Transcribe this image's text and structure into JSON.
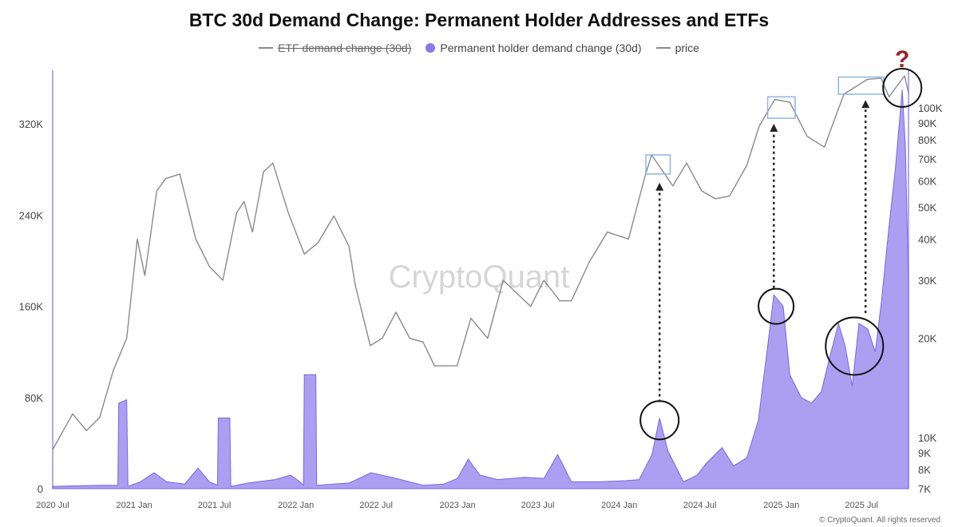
{
  "chart_data": {
    "type": "area",
    "title": "BTC 30d Demand Change: Permanent Holder Addresses and ETFs",
    "legend": [
      {
        "label": "ETF demand change (30d)",
        "style": "line",
        "color": "#8a8a8a",
        "hidden": true
      },
      {
        "label": "Permanent holder demand change (30d)",
        "style": "dot",
        "color": "#8b78e6"
      },
      {
        "label": "price",
        "style": "line",
        "color": "#8a8a8a"
      }
    ],
    "legend_position": "top-center",
    "left_axis": {
      "ticks": [
        "0",
        "80K",
        "160K",
        "240K",
        "320K"
      ],
      "values": [
        0,
        80000,
        160000,
        240000,
        320000
      ],
      "ylim": [
        0,
        367000
      ]
    },
    "right_axis": {
      "scale": "log",
      "ticks": [
        "7K",
        "8K",
        "9K",
        "10K",
        "20K",
        "30K",
        "40K",
        "50K",
        "60K",
        "70K",
        "80K",
        "90K",
        "100K"
      ],
      "values": [
        7000,
        8000,
        9000,
        10000,
        20000,
        30000,
        40000,
        50000,
        60000,
        70000,
        80000,
        90000,
        100000
      ],
      "ylim": [
        7000,
        130000
      ]
    },
    "x_axis": {
      "ticks": [
        "2020 Jul",
        "2021 Jan",
        "2021 Jul",
        "2022 Jan",
        "2022 Jul",
        "2023 Jan",
        "2023 Jul",
        "2024 Jan",
        "2024 Jul",
        "2025 Jan",
        "2025 Jul"
      ],
      "tick_dates": [
        "2020-07-01",
        "2021-01-01",
        "2021-07-01",
        "2022-01-01",
        "2022-07-01",
        "2023-01-01",
        "2023-07-01",
        "2024-01-01",
        "2024-07-01",
        "2025-01-01",
        "2025-07-01"
      ],
      "xlim": [
        "2020-07-01",
        "2025-10-15"
      ]
    },
    "grid": false,
    "series": [
      {
        "name": "Permanent holder demand change (30d)",
        "axis": "left",
        "color": "#8b78e6",
        "points": [
          [
            "2020-07-01",
            2000
          ],
          [
            "2020-10-15",
            3000
          ],
          [
            "2020-11-25",
            3000
          ],
          [
            "2020-11-27",
            75000
          ],
          [
            "2020-12-15",
            78000
          ],
          [
            "2020-12-18",
            2000
          ],
          [
            "2021-01-15",
            6000
          ],
          [
            "2021-02-15",
            14000
          ],
          [
            "2021-03-15",
            6000
          ],
          [
            "2021-04-25",
            4000
          ],
          [
            "2021-05-25",
            18000
          ],
          [
            "2021-06-20",
            6000
          ],
          [
            "2021-07-08",
            3000
          ],
          [
            "2021-07-10",
            62000
          ],
          [
            "2021-08-05",
            62000
          ],
          [
            "2021-08-07",
            2000
          ],
          [
            "2021-09-15",
            5000
          ],
          [
            "2021-11-15",
            8000
          ],
          [
            "2021-12-20",
            12000
          ],
          [
            "2022-01-10",
            6000
          ],
          [
            "2022-01-18",
            3000
          ],
          [
            "2022-01-20",
            100000
          ],
          [
            "2022-02-15",
            100000
          ],
          [
            "2022-02-17",
            3000
          ],
          [
            "2022-05-01",
            5000
          ],
          [
            "2022-06-20",
            14000
          ],
          [
            "2022-08-15",
            9000
          ],
          [
            "2022-10-15",
            3000
          ],
          [
            "2022-12-01",
            4000
          ],
          [
            "2023-01-01",
            9000
          ],
          [
            "2023-01-25",
            26000
          ],
          [
            "2023-02-20",
            12000
          ],
          [
            "2023-04-01",
            8000
          ],
          [
            "2023-06-01",
            10000
          ],
          [
            "2023-07-15",
            9000
          ],
          [
            "2023-08-15",
            30000
          ],
          [
            "2023-09-15",
            6000
          ],
          [
            "2023-11-15",
            6000
          ],
          [
            "2024-01-15",
            7000
          ],
          [
            "2024-02-15",
            8000
          ],
          [
            "2024-03-15",
            30000
          ],
          [
            "2024-04-01",
            62000
          ],
          [
            "2024-04-20",
            33000
          ],
          [
            "2024-05-25",
            6000
          ],
          [
            "2024-06-25",
            12000
          ],
          [
            "2024-07-15",
            22000
          ],
          [
            "2024-08-20",
            36000
          ],
          [
            "2024-09-15",
            20000
          ],
          [
            "2024-10-15",
            27000
          ],
          [
            "2024-11-10",
            60000
          ],
          [
            "2024-12-01",
            125000
          ],
          [
            "2024-12-15",
            170000
          ],
          [
            "2025-01-05",
            160000
          ],
          [
            "2025-01-20",
            100000
          ],
          [
            "2025-02-15",
            80000
          ],
          [
            "2025-03-10",
            75000
          ],
          [
            "2025-04-01",
            85000
          ],
          [
            "2025-04-20",
            115000
          ],
          [
            "2025-05-10",
            145000
          ],
          [
            "2025-05-25",
            125000
          ],
          [
            "2025-06-10",
            90000
          ],
          [
            "2025-06-25",
            145000
          ],
          [
            "2025-07-15",
            140000
          ],
          [
            "2025-08-01",
            120000
          ],
          [
            "2025-08-15",
            165000
          ],
          [
            "2025-09-01",
            230000
          ],
          [
            "2025-09-15",
            280000
          ],
          [
            "2025-10-01",
            350000
          ],
          [
            "2025-10-08",
            300000
          ],
          [
            "2025-10-15",
            180000
          ]
        ]
      },
      {
        "name": "price",
        "axis": "right",
        "color": "#8a8a8a",
        "points": [
          [
            "2020-07-01",
            9200
          ],
          [
            "2020-08-15",
            11800
          ],
          [
            "2020-09-15",
            10500
          ],
          [
            "2020-10-15",
            11500
          ],
          [
            "2020-11-15",
            16000
          ],
          [
            "2020-12-15",
            20000
          ],
          [
            "2021-01-08",
            40000
          ],
          [
            "2021-01-25",
            31000
          ],
          [
            "2021-02-21",
            56000
          ],
          [
            "2021-03-13",
            61000
          ],
          [
            "2021-04-14",
            63000
          ],
          [
            "2021-05-20",
            40000
          ],
          [
            "2021-06-20",
            33000
          ],
          [
            "2021-07-20",
            30000
          ],
          [
            "2021-08-20",
            48000
          ],
          [
            "2021-09-06",
            52000
          ],
          [
            "2021-09-25",
            42000
          ],
          [
            "2021-10-20",
            64000
          ],
          [
            "2021-11-10",
            68000
          ],
          [
            "2021-12-15",
            48000
          ],
          [
            "2022-01-20",
            36000
          ],
          [
            "2022-02-20",
            39000
          ],
          [
            "2022-03-28",
            47000
          ],
          [
            "2022-05-01",
            38000
          ],
          [
            "2022-05-15",
            29000
          ],
          [
            "2022-06-18",
            19000
          ],
          [
            "2022-07-15",
            20000
          ],
          [
            "2022-08-15",
            24000
          ],
          [
            "2022-09-15",
            20000
          ],
          [
            "2022-10-15",
            19500
          ],
          [
            "2022-11-10",
            16500
          ],
          [
            "2022-12-31",
            16500
          ],
          [
            "2023-01-31",
            23000
          ],
          [
            "2023-03-10",
            20000
          ],
          [
            "2023-04-14",
            30000
          ],
          [
            "2023-06-15",
            25000
          ],
          [
            "2023-07-15",
            30000
          ],
          [
            "2023-08-20",
            26000
          ],
          [
            "2023-09-15",
            26000
          ],
          [
            "2023-10-25",
            34000
          ],
          [
            "2023-12-05",
            42000
          ],
          [
            "2024-01-22",
            40000
          ],
          [
            "2024-02-28",
            62000
          ],
          [
            "2024-03-14",
            72000
          ],
          [
            "2024-05-01",
            58000
          ],
          [
            "2024-06-01",
            68000
          ],
          [
            "2024-07-05",
            56000
          ],
          [
            "2024-08-05",
            53000
          ],
          [
            "2024-09-06",
            54000
          ],
          [
            "2024-10-15",
            67000
          ],
          [
            "2024-11-12",
            88000
          ],
          [
            "2024-12-17",
            106000
          ],
          [
            "2025-01-20",
            104000
          ],
          [
            "2025-02-28",
            82000
          ],
          [
            "2025-04-08",
            76000
          ],
          [
            "2025-05-22",
            110000
          ],
          [
            "2025-07-14",
            122000
          ],
          [
            "2025-08-14",
            123000
          ],
          [
            "2025-09-01",
            108000
          ],
          [
            "2025-10-06",
            125000
          ],
          [
            "2025-10-15",
            111000
          ]
        ]
      }
    ],
    "annotations": {
      "boxes": [
        {
          "x0": "2024-03-01",
          "x1": "2024-04-25",
          "y_top": 72000,
          "y_bottom": 63000
        },
        {
          "x0": "2024-12-01",
          "x1": "2025-02-01",
          "y_top": 108000,
          "y_bottom": 93000
        },
        {
          "x0": "2025-05-10",
          "x1": "2025-08-20",
          "y_top": 124000,
          "y_bottom": 110000
        }
      ],
      "circles": [
        {
          "date": "2024-04-01",
          "axis": "left",
          "value": 60000
        },
        {
          "date": "2024-12-20",
          "axis": "left",
          "value": 160000
        },
        {
          "date": "2025-06-15",
          "axis": "left",
          "value": 125000
        },
        {
          "date": "2025-10-01",
          "axis": "right",
          "value": 115000
        }
      ],
      "arrows": [
        {
          "date": "2024-04-01",
          "from_left_value": 76000,
          "to_price": 59000
        },
        {
          "date": "2024-12-15",
          "from_left_value": 176000,
          "to_price": 89000
        },
        {
          "date": "2025-07-10",
          "from_left_value": 154000,
          "to_price": 105000
        }
      ],
      "question_mark": {
        "text": "?",
        "date": "2025-10-01"
      }
    },
    "watermark": "CryptoQuant",
    "source": "© CryptoQuant. All rights reserved"
  }
}
